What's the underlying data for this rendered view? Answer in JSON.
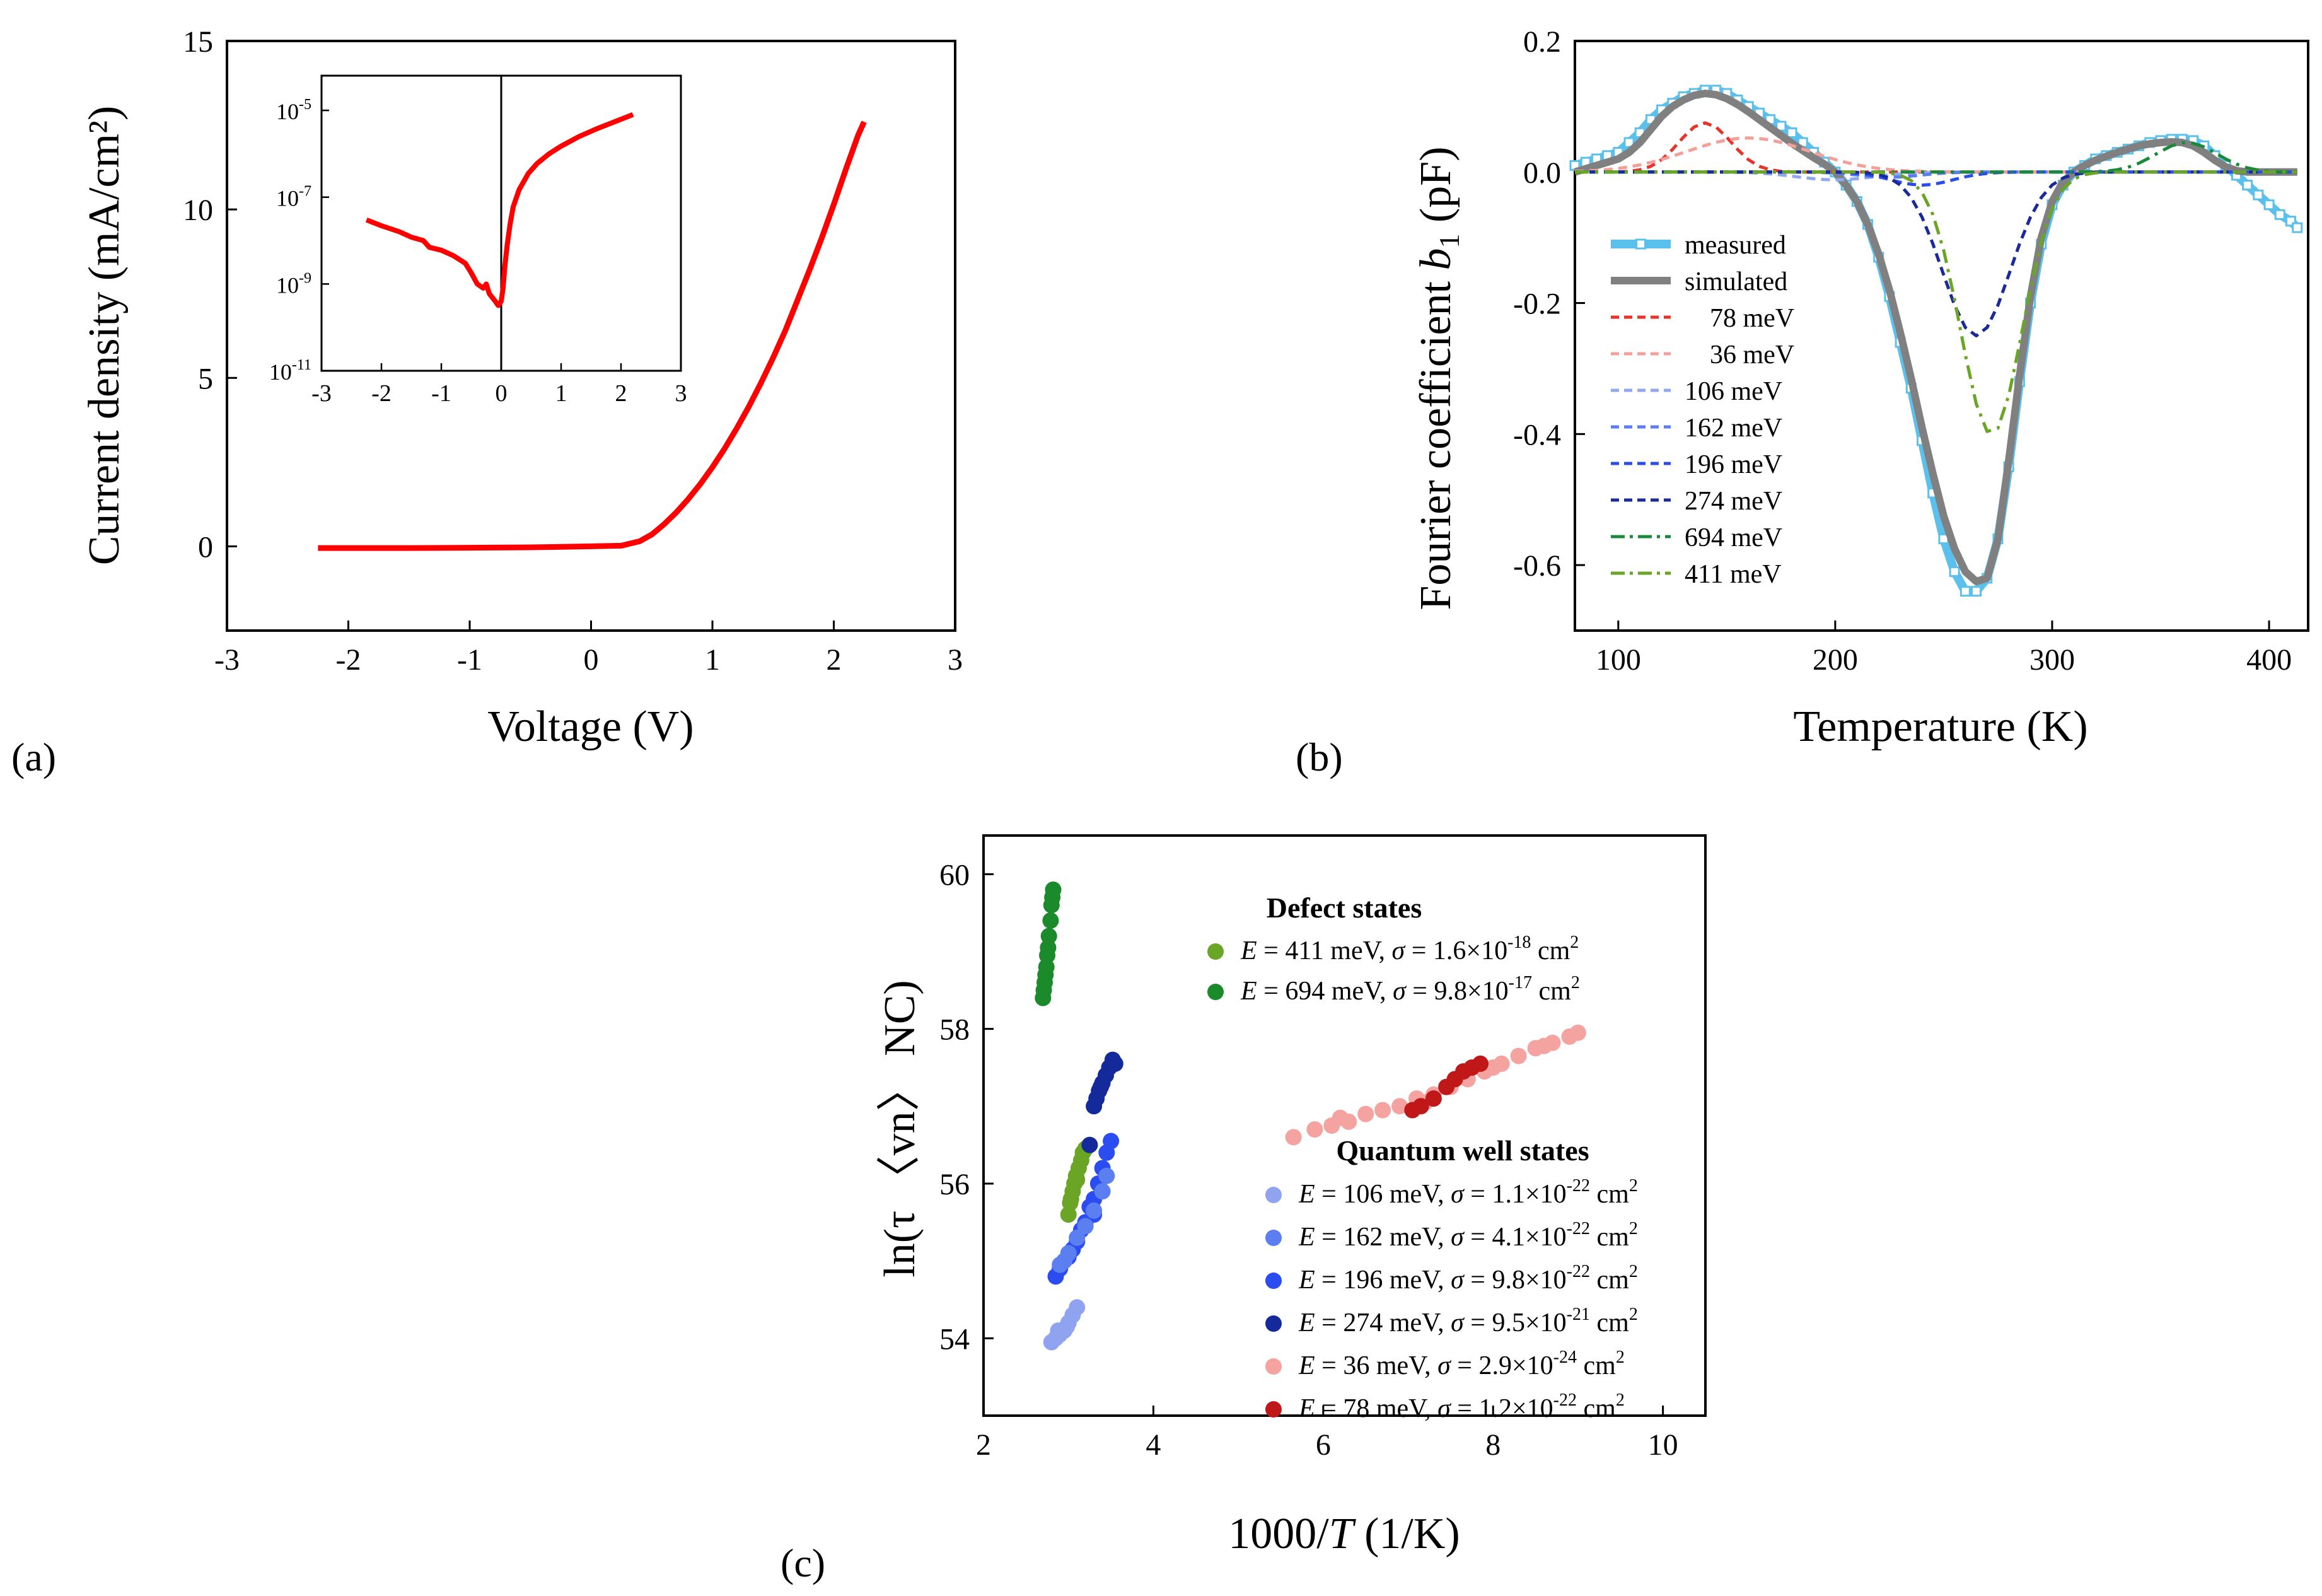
{
  "panels": {
    "a": "(a)",
    "b": "(b)",
    "c": "(c)"
  },
  "chart_data": [
    {
      "id": "a",
      "type": "line",
      "xlabel": "Voltage (V)",
      "ylabel": "Current density (mA/cm²)",
      "xlim": [
        -3,
        3
      ],
      "ylim": [
        -2.5,
        15
      ],
      "xticks": [
        "-3",
        "-2",
        "-1",
        "0",
        "1",
        "2",
        "3"
      ],
      "yticks": [
        "0",
        "5",
        "10",
        "15"
      ],
      "series": [
        {
          "color": "#ff0000",
          "x": [
            -2.25,
            -1.5,
            -1.0,
            -0.5,
            0.0,
            0.25,
            0.4,
            0.5,
            0.6,
            0.7,
            0.8,
            0.9,
            1.0,
            1.1,
            1.2,
            1.3,
            1.4,
            1.5,
            1.6,
            1.7,
            1.8,
            1.9,
            2.0,
            2.1,
            2.2,
            2.25
          ],
          "y": [
            -0.05,
            -0.05,
            -0.04,
            -0.03,
            0.0,
            0.02,
            0.15,
            0.35,
            0.65,
            1.0,
            1.4,
            1.85,
            2.35,
            2.9,
            3.5,
            4.15,
            4.85,
            5.6,
            6.4,
            7.3,
            8.2,
            9.15,
            10.15,
            11.2,
            12.2,
            12.6
          ]
        }
      ],
      "inset": {
        "type": "line",
        "yscale": "log",
        "xlim": [
          -3,
          3
        ],
        "ylim_exp": [
          -11,
          -4.2
        ],
        "xticks": [
          "-3",
          "-2",
          "-1",
          "0",
          "1",
          "2",
          "3"
        ],
        "yticks": [
          {
            "base": "10",
            "exp": "-5"
          },
          {
            "base": "10",
            "exp": "-7"
          },
          {
            "base": "10",
            "exp": "-9"
          },
          {
            "base": "10",
            "exp": "-11"
          }
        ],
        "series": [
          {
            "color": "#ff0000",
            "x": [
              -2.25,
              -2.0,
              -1.7,
              -1.5,
              -1.3,
              -1.2,
              -1.0,
              -0.8,
              -0.6,
              -0.5,
              -0.4,
              -0.3,
              -0.25,
              -0.2,
              -0.1,
              -0.05,
              0.0,
              0.03,
              0.06,
              0.1,
              0.15,
              0.2,
              0.3,
              0.45,
              0.6,
              0.8,
              1.0,
              1.3,
              1.6,
              1.9,
              2.2
            ],
            "y": [
              3e-08,
              2.2e-08,
              1.6e-08,
              1.2e-08,
              1e-08,
              7e-09,
              6e-09,
              4.5e-09,
              3e-09,
              1.8e-09,
              1e-09,
              8e-10,
              1e-09,
              6e-10,
              4e-10,
              3.2e-10,
              4e-10,
              8e-10,
              2.5e-09,
              8e-09,
              2.5e-08,
              6e-08,
              1.5e-07,
              3.5e-07,
              6e-07,
              1e-06,
              1.5e-06,
              2.5e-06,
              3.8e-06,
              5.5e-06,
              8e-06
            ]
          }
        ]
      }
    },
    {
      "id": "b",
      "type": "line",
      "xlabel": "Temperature (K)",
      "ylabel_prefix": "Fourier coefficient ",
      "ylabel_var": "b",
      "ylabel_sub": "1",
      "ylabel_suffix": " (pF)",
      "xlim": [
        80,
        418
      ],
      "ylim": [
        -0.7,
        0.2
      ],
      "xticks": [
        "100",
        "200",
        "300",
        "400"
      ],
      "yticks": [
        "0.2",
        "0.0",
        "-0.2",
        "-0.4",
        "-0.6"
      ],
      "x": [
        80,
        85,
        90,
        95,
        100,
        105,
        110,
        115,
        120,
        125,
        130,
        135,
        140,
        145,
        150,
        155,
        160,
        165,
        170,
        175,
        180,
        185,
        190,
        195,
        200,
        205,
        210,
        215,
        220,
        225,
        230,
        235,
        240,
        245,
        250,
        255,
        260,
        265,
        270,
        275,
        280,
        285,
        290,
        295,
        300,
        305,
        310,
        315,
        320,
        325,
        330,
        335,
        340,
        345,
        350,
        355,
        360,
        365,
        370,
        375,
        380,
        385,
        390,
        395,
        400,
        405,
        410,
        413
      ],
      "series": [
        {
          "name": "measured",
          "color": "#5bc0eb",
          "style": "measured",
          "y": [
            0.01,
            0.015,
            0.02,
            0.025,
            0.03,
            0.045,
            0.06,
            0.08,
            0.095,
            0.105,
            0.115,
            0.12,
            0.125,
            0.125,
            0.12,
            0.11,
            0.1,
            0.09,
            0.08,
            0.07,
            0.06,
            0.045,
            0.03,
            0.015,
            0.0,
            -0.02,
            -0.045,
            -0.08,
            -0.13,
            -0.19,
            -0.26,
            -0.33,
            -0.41,
            -0.49,
            -0.56,
            -0.61,
            -0.64,
            -0.64,
            -0.62,
            -0.56,
            -0.45,
            -0.32,
            -0.2,
            -0.11,
            -0.05,
            -0.02,
            0.0,
            0.01,
            0.02,
            0.025,
            0.03,
            0.035,
            0.04,
            0.045,
            0.048,
            0.05,
            0.05,
            0.048,
            0.04,
            0.025,
            0.01,
            -0.005,
            -0.02,
            -0.035,
            -0.05,
            -0.065,
            -0.075,
            -0.085
          ]
        },
        {
          "name": "simulated",
          "color": "#808080",
          "style": "simulated",
          "y": [
            0.0,
            0.005,
            0.01,
            0.015,
            0.02,
            0.03,
            0.045,
            0.065,
            0.085,
            0.1,
            0.11,
            0.117,
            0.12,
            0.118,
            0.112,
            0.103,
            0.092,
            0.08,
            0.068,
            0.056,
            0.044,
            0.033,
            0.022,
            0.012,
            0.0,
            -0.02,
            -0.045,
            -0.08,
            -0.125,
            -0.18,
            -0.245,
            -0.315,
            -0.39,
            -0.46,
            -0.525,
            -0.575,
            -0.61,
            -0.625,
            -0.62,
            -0.56,
            -0.44,
            -0.31,
            -0.19,
            -0.1,
            -0.045,
            -0.015,
            0.0,
            0.01,
            0.018,
            0.024,
            0.03,
            0.035,
            0.04,
            0.043,
            0.045,
            0.046,
            0.045,
            0.04,
            0.03,
            0.018,
            0.008,
            0.002,
            0.0,
            0.0,
            0.0,
            0.0,
            0.0,
            0.0
          ]
        },
        {
          "name": "78 meV",
          "color": "#e8332a",
          "style": "dash",
          "peak": {
            "center": 140,
            "amp": 0.075,
            "width": 17
          }
        },
        {
          "name": "36 meV",
          "color": "#f4a09a",
          "style": "dash",
          "peak": {
            "center": 160,
            "amp": 0.052,
            "width": 40
          }
        },
        {
          "name": "106 meV",
          "color": "#8fa8f0",
          "style": "dash",
          "peak": {
            "center": 200,
            "amp": -0.012,
            "width": 25
          }
        },
        {
          "name": "162 meV",
          "color": "#5b7df0",
          "style": "dash",
          "peak": {
            "center": 225,
            "amp": -0.008,
            "width": 20
          }
        },
        {
          "name": "196 meV",
          "color": "#2b4de8",
          "style": "dash",
          "peak": {
            "center": 240,
            "amp": -0.02,
            "width": 20
          }
        },
        {
          "name": "274 meV",
          "color": "#1b2a9a",
          "style": "dash",
          "peak": {
            "center": 265,
            "amp": -0.25,
            "width": 22
          }
        },
        {
          "name": "694 meV",
          "color": "#1a8a3a",
          "style": "dashdot",
          "peak": {
            "center": 362,
            "amp": 0.045,
            "width": 20
          }
        },
        {
          "name": "411 meV",
          "color": "#6aa526",
          "style": "dashdot",
          "peak": {
            "center": 272,
            "amp": -0.4,
            "width": 20
          }
        }
      ]
    },
    {
      "id": "c",
      "type": "scatter",
      "xlabel_main": "1000/",
      "xlabel_var": "T",
      "xlabel_unit": " (1/K)",
      "ylabel": "ln(τ 〈vn〉 NC)",
      "xlim": [
        2,
        10.5
      ],
      "ylim": [
        53,
        60.5
      ],
      "xticks": [
        "2",
        "4",
        "6",
        "8",
        "10"
      ],
      "yticks": [
        "54",
        "56",
        "58",
        "60"
      ],
      "legend_defect_title": "Defect states",
      "legend_qw_title": "Quantum well states",
      "defect_legend": [
        {
          "color": "#6aa526",
          "E": "E",
          "energy": " = 411 meV, ",
          "sigma": "σ",
          "value": " = 1.6×10",
          "exp": "-18",
          "unit": " cm",
          "unit_exp": "2"
        },
        {
          "color": "#1a8a2a",
          "E": "E",
          "energy": " = 694 meV, ",
          "sigma": "σ",
          "value": " = 9.8×10",
          "exp": "-17",
          "unit": " cm",
          "unit_exp": "2"
        }
      ],
      "qw_legend": [
        {
          "color": "#8fa3f0",
          "E": "E",
          "energy": " = 106 meV, ",
          "sigma": "σ",
          "value": " = 1.1×10",
          "exp": "-22",
          "unit": " cm",
          "unit_exp": "2"
        },
        {
          "color": "#5b7ff0",
          "E": "E",
          "energy": " = 162 meV, ",
          "sigma": "σ",
          "value": " = 4.1×10",
          "exp": "-22",
          "unit": " cm",
          "unit_exp": "2"
        },
        {
          "color": "#2a4cf0",
          "E": "E",
          "energy": " = 196 meV, ",
          "sigma": "σ",
          "value": " = 9.8×10",
          "exp": "-22",
          "unit": " cm",
          "unit_exp": "2"
        },
        {
          "color": "#152a9a",
          "E": "E",
          "energy": " = 274 meV, ",
          "sigma": "σ",
          "value": " = 9.5×10",
          "exp": "-21",
          "unit": " cm",
          "unit_exp": "2"
        },
        {
          "color": "#f4a3a0",
          "E": "E",
          "energy": " =   36 meV, ",
          "sigma": "σ",
          "value": " = 2.9×10",
          "exp": "-24",
          "unit": " cm",
          "unit_exp": "2"
        },
        {
          "color": "#c01818",
          "E": "E",
          "energy": " =   78 meV, ",
          "sigma": "σ",
          "value": " = 1.2×10",
          "exp": "-22",
          "unit": " cm",
          "unit_exp": "2"
        }
      ],
      "series": [
        {
          "color": "#1a8a2a",
          "points": [
            [
              2.7,
              58.4
            ],
            [
              2.71,
              58.5
            ],
            [
              2.73,
              58.7
            ],
            [
              2.74,
              58.8
            ],
            [
              2.75,
              58.95
            ],
            [
              2.77,
              59.2
            ],
            [
              2.79,
              59.4
            ],
            [
              2.8,
              59.6
            ],
            [
              2.81,
              59.7
            ],
            [
              2.82,
              59.8
            ],
            [
              2.72,
              58.6
            ],
            [
              2.76,
              59.05
            ]
          ]
        },
        {
          "color": "#6aa526",
          "points": [
            [
              3.0,
              55.6
            ],
            [
              3.02,
              55.75
            ],
            [
              3.05,
              55.9
            ],
            [
              3.07,
              56.0
            ],
            [
              3.09,
              56.1
            ],
            [
              3.12,
              56.2
            ],
            [
              3.15,
              56.3
            ],
            [
              3.17,
              56.4
            ],
            [
              3.2,
              56.45
            ],
            [
              3.03,
              55.8
            ],
            [
              3.1,
              56.05
            ]
          ]
        },
        {
          "color": "#152a9a",
          "points": [
            [
              3.3,
              57.0
            ],
            [
              3.33,
              57.1
            ],
            [
              3.36,
              57.2
            ],
            [
              3.4,
              57.3
            ],
            [
              3.44,
              57.4
            ],
            [
              3.48,
              57.5
            ],
            [
              3.52,
              57.6
            ],
            [
              3.55,
              57.55
            ],
            [
              3.38,
              57.25
            ],
            [
              3.25,
              56.5
            ]
          ]
        },
        {
          "color": "#2a4cf0",
          "points": [
            [
              2.85,
              54.8
            ],
            [
              2.9,
              54.9
            ],
            [
              3.0,
              55.05
            ],
            [
              3.1,
              55.25
            ],
            [
              3.2,
              55.5
            ],
            [
              3.3,
              55.8
            ],
            [
              3.35,
              56.0
            ],
            [
              3.4,
              56.2
            ],
            [
              3.45,
              56.4
            ],
            [
              3.5,
              56.55
            ],
            [
              3.25,
              55.7
            ],
            [
              3.05,
              55.15
            ],
            [
              3.15,
              55.4
            ],
            [
              3.3,
              55.6
            ]
          ]
        },
        {
          "color": "#5b7ff0",
          "points": [
            [
              2.9,
              54.95
            ],
            [
              3.0,
              55.1
            ],
            [
              3.1,
              55.3
            ],
            [
              3.2,
              55.45
            ],
            [
              3.3,
              55.65
            ],
            [
              3.4,
              55.9
            ],
            [
              3.45,
              56.1
            ],
            [
              2.95,
              55.0
            ]
          ]
        },
        {
          "color": "#8fa3f0",
          "points": [
            [
              2.8,
              53.95
            ],
            [
              2.85,
              54.0
            ],
            [
              2.9,
              54.05
            ],
            [
              2.95,
              54.1
            ],
            [
              3.0,
              54.2
            ],
            [
              3.05,
              54.3
            ],
            [
              3.1,
              54.4
            ],
            [
              2.88,
              54.1
            ],
            [
              2.98,
              54.15
            ]
          ]
        },
        {
          "color": "#f4a3a0",
          "points": [
            [
              5.65,
              56.6
            ],
            [
              5.9,
              56.7
            ],
            [
              6.1,
              56.75
            ],
            [
              6.3,
              56.8
            ],
            [
              6.5,
              56.9
            ],
            [
              6.7,
              56.95
            ],
            [
              6.9,
              57.0
            ],
            [
              7.1,
              57.1
            ],
            [
              7.3,
              57.15
            ],
            [
              7.5,
              57.25
            ],
            [
              7.7,
              57.35
            ],
            [
              7.9,
              57.45
            ],
            [
              8.1,
              57.55
            ],
            [
              8.3,
              57.65
            ],
            [
              8.5,
              57.75
            ],
            [
              8.7,
              57.82
            ],
            [
              8.9,
              57.9
            ],
            [
              9.0,
              57.95
            ],
            [
              6.2,
              56.85
            ],
            [
              7.2,
              57.05
            ],
            [
              8.0,
              57.5
            ],
            [
              8.6,
              57.78
            ]
          ]
        },
        {
          "color": "#c01818",
          "points": [
            [
              7.05,
              56.95
            ],
            [
              7.15,
              57.0
            ],
            [
              7.3,
              57.1
            ],
            [
              7.45,
              57.25
            ],
            [
              7.55,
              57.35
            ],
            [
              7.65,
              57.45
            ],
            [
              7.75,
              57.5
            ],
            [
              7.85,
              57.55
            ]
          ]
        }
      ]
    }
  ]
}
